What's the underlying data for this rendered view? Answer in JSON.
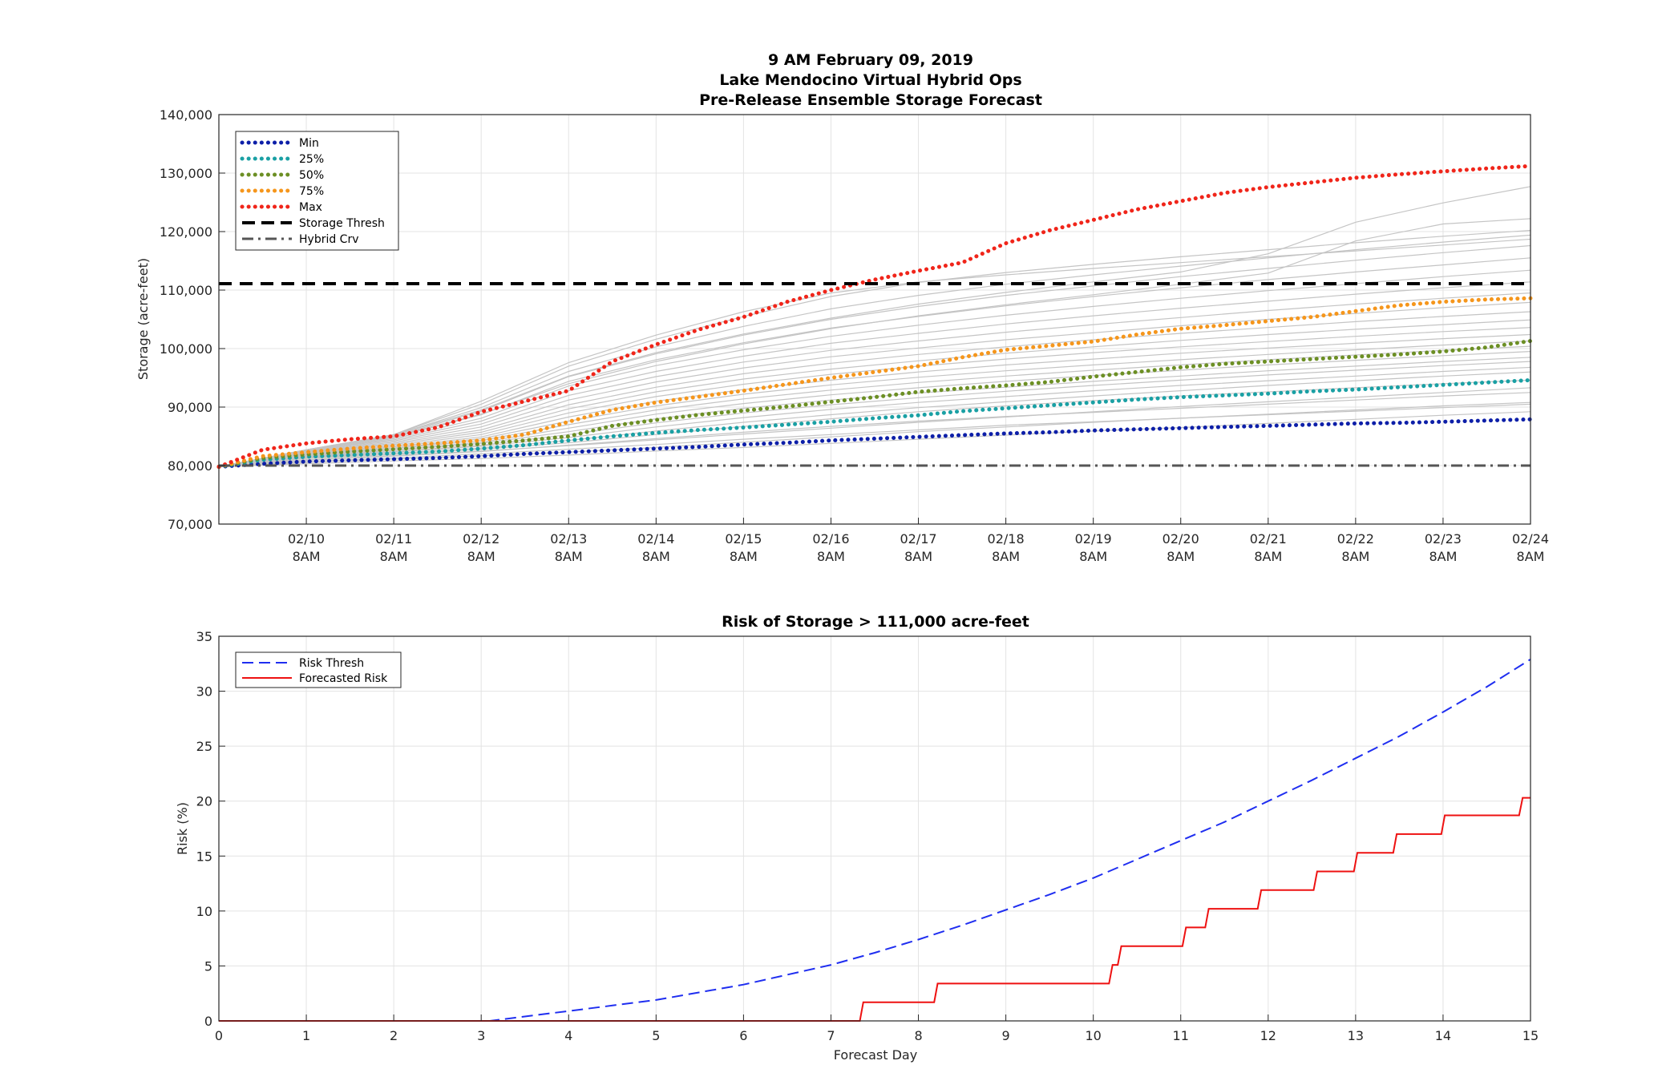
{
  "chart_data": [
    {
      "type": "line",
      "title": [
        "9 AM February 09, 2019",
        "Lake Mendocino Virtual Hybrid Ops",
        "Pre-Release Ensemble Storage Forecast"
      ],
      "ylabel": "Storage (acre-feet)",
      "xlabel": "",
      "xlim": [
        0,
        15
      ],
      "ylim": [
        70000,
        140000
      ],
      "grid": true,
      "legend_position": "top-left",
      "y_ticks": [
        "70,000",
        "80,000",
        "90,000",
        "100,000",
        "110,000",
        "120,000",
        "130,000",
        "140,000"
      ],
      "x_ticks": [
        {
          "x": 1,
          "date": "02/10",
          "time": "8AM"
        },
        {
          "x": 2,
          "date": "02/11",
          "time": "8AM"
        },
        {
          "x": 3,
          "date": "02/12",
          "time": "8AM"
        },
        {
          "x": 4,
          "date": "02/13",
          "time": "8AM"
        },
        {
          "x": 5,
          "date": "02/14",
          "time": "8AM"
        },
        {
          "x": 6,
          "date": "02/15",
          "time": "8AM"
        },
        {
          "x": 7,
          "date": "02/16",
          "time": "8AM"
        },
        {
          "x": 8,
          "date": "02/17",
          "time": "8AM"
        },
        {
          "x": 9,
          "date": "02/18",
          "time": "8AM"
        },
        {
          "x": 10,
          "date": "02/19",
          "time": "8AM"
        },
        {
          "x": 11,
          "date": "02/20",
          "time": "8AM"
        },
        {
          "x": 12,
          "date": "02/21",
          "time": "8AM"
        },
        {
          "x": 13,
          "date": "02/22",
          "time": "8AM"
        },
        {
          "x": 14,
          "date": "02/23",
          "time": "8AM"
        },
        {
          "x": 15,
          "date": "02/24",
          "time": "8AM"
        }
      ],
      "x_day": [
        0,
        0.5,
        1,
        1.5,
        2,
        2.5,
        3,
        3.5,
        4,
        4.5,
        5,
        5.5,
        6,
        6.5,
        7,
        7.5,
        8,
        8.5,
        9,
        9.5,
        10,
        10.5,
        11,
        11.5,
        12,
        12.5,
        13,
        13.5,
        14,
        14.5,
        15
      ],
      "series": [
        {
          "name": "Min",
          "color": "#0d1fa8",
          "style": "dotted",
          "values": [
            79800,
            80300,
            80700,
            80900,
            81100,
            81300,
            81600,
            82000,
            82300,
            82600,
            82900,
            83200,
            83600,
            83900,
            84300,
            84600,
            84900,
            85200,
            85500,
            85700,
            86000,
            86200,
            86400,
            86600,
            86800,
            87000,
            87200,
            87300,
            87500,
            87700,
            87900
          ]
        },
        {
          "name": "25%",
          "color": "#1aa0a4",
          "style": "dotted",
          "values": [
            79800,
            81000,
            81500,
            81800,
            82100,
            82400,
            82900,
            83500,
            84300,
            85000,
            85600,
            86100,
            86500,
            87000,
            87500,
            88100,
            88600,
            89300,
            89800,
            90300,
            90800,
            91300,
            91700,
            92000,
            92300,
            92700,
            93000,
            93400,
            93800,
            94200,
            94600
          ]
        },
        {
          "name": "50%",
          "color": "#6c8f24",
          "style": "dotted",
          "values": [
            79800,
            81300,
            81900,
            82400,
            82800,
            83200,
            83700,
            84300,
            85000,
            86800,
            87800,
            88700,
            89400,
            90100,
            90900,
            91700,
            92600,
            93200,
            93700,
            94300,
            95200,
            96000,
            96800,
            97400,
            97800,
            98200,
            98600,
            99000,
            99500,
            100200,
            101300
          ]
        },
        {
          "name": "75%",
          "color": "#f5961c",
          "style": "dotted",
          "values": [
            79800,
            81600,
            82300,
            82900,
            83400,
            83800,
            84300,
            85300,
            87500,
            89500,
            90800,
            91800,
            92800,
            93900,
            95000,
            96000,
            97000,
            98500,
            99800,
            100500,
            101200,
            102400,
            103400,
            104000,
            104700,
            105400,
            106400,
            107400,
            108000,
            108400,
            108600
          ]
        },
        {
          "name": "Max",
          "color": "#f0251a",
          "style": "dotted",
          "values": [
            79800,
            82700,
            83800,
            84500,
            85000,
            86500,
            89200,
            91000,
            92800,
            97800,
            100700,
            103300,
            105400,
            108000,
            110000,
            111800,
            113300,
            114700,
            118000,
            120200,
            122000,
            123800,
            125200,
            126600,
            127600,
            128400,
            129200,
            129800,
            130300,
            130800,
            131200
          ]
        },
        {
          "name": "Storage Thresh",
          "color": "#000000",
          "style": "dashed",
          "values": [
            111100,
            111100
          ]
        },
        {
          "name": "Hybrid Crv",
          "color": "#555555",
          "style": "dashdot",
          "values": [
            80000,
            80000
          ]
        }
      ],
      "ensemble_members": {
        "color": "#c4c4c4",
        "x": [
          0,
          1,
          2,
          3,
          4,
          5,
          6,
          7,
          8,
          9,
          10,
          11,
          12,
          13,
          14,
          15
        ],
        "members": [
          [
            79800,
            80300,
            80800,
            81200,
            81800,
            82500,
            83100,
            83800,
            84500,
            85200,
            85900,
            86500,
            87200,
            87900,
            88600,
            89200
          ],
          [
            79800,
            80500,
            81100,
            81700,
            82300,
            83100,
            84000,
            84900,
            85800,
            86600,
            87400,
            88100,
            88800,
            89500,
            90200,
            90800
          ],
          [
            79800,
            80700,
            81300,
            82000,
            82800,
            83600,
            84500,
            85300,
            86100,
            86900,
            87500,
            88100,
            88700,
            89300,
            89900,
            90500
          ],
          [
            79800,
            80900,
            81600,
            82400,
            83500,
            84600,
            85700,
            86700,
            87600,
            88400,
            89100,
            89800,
            90500,
            91200,
            91900,
            92500
          ],
          [
            79800,
            81000,
            81700,
            82500,
            83400,
            84400,
            85400,
            86400,
            87400,
            88300,
            89200,
            90100,
            90900,
            91700,
            92500,
            93300
          ],
          [
            79800,
            81200,
            81900,
            82800,
            83900,
            85300,
            86700,
            88000,
            89200,
            90200,
            91100,
            91900,
            92600,
            93300,
            94000,
            94600
          ],
          [
            79800,
            81300,
            82100,
            83000,
            84300,
            85900,
            87400,
            88700,
            89900,
            90900,
            91900,
            92800,
            93700,
            94500,
            95300,
            96000
          ],
          [
            79800,
            81400,
            82300,
            83300,
            84800,
            86600,
            88200,
            89600,
            90800,
            91800,
            92800,
            93700,
            94500,
            95300,
            96100,
            96800
          ],
          [
            79800,
            81500,
            82400,
            83500,
            85300,
            87300,
            89000,
            90400,
            91600,
            92700,
            93700,
            94600,
            95500,
            96300,
            97100,
            97800
          ],
          [
            79800,
            81600,
            82600,
            83800,
            85800,
            88000,
            89800,
            91200,
            92400,
            93400,
            94400,
            95300,
            96200,
            97000,
            97800,
            98500
          ],
          [
            79800,
            81700,
            82700,
            84000,
            86400,
            88800,
            90600,
            92100,
            93300,
            94400,
            95400,
            96300,
            97200,
            98000,
            98800,
            99500
          ],
          [
            79800,
            81800,
            82900,
            84300,
            87000,
            89500,
            91400,
            92900,
            94200,
            95300,
            96300,
            97200,
            98100,
            98900,
            99700,
            100400
          ],
          [
            79800,
            81900,
            83000,
            84600,
            87600,
            90200,
            92200,
            93800,
            95100,
            96200,
            97200,
            98100,
            99000,
            99800,
            100600,
            101300
          ],
          [
            79800,
            82000,
            83200,
            84900,
            88300,
            91000,
            93000,
            94600,
            96000,
            97200,
            98200,
            99200,
            100100,
            100900,
            101700,
            102400
          ],
          [
            79800,
            82100,
            83400,
            85300,
            89000,
            91800,
            93900,
            95600,
            97000,
            98200,
            99300,
            100300,
            101200,
            102100,
            102900,
            103600
          ],
          [
            79800,
            82200,
            83600,
            85700,
            89700,
            92600,
            94800,
            96500,
            97900,
            99200,
            100300,
            101400,
            102400,
            103300,
            104100,
            104900
          ],
          [
            79800,
            82300,
            83800,
            86100,
            90400,
            93400,
            95700,
            97500,
            99000,
            100300,
            101500,
            102600,
            103600,
            104600,
            105500,
            106300
          ],
          [
            79800,
            82400,
            84000,
            86600,
            91200,
            94300,
            96700,
            98600,
            100100,
            101500,
            102700,
            103900,
            105000,
            106000,
            107000,
            107900
          ],
          [
            79800,
            82500,
            84200,
            87100,
            92000,
            95200,
            97700,
            99700,
            101300,
            102800,
            104100,
            105300,
            106500,
            107600,
            108600,
            109500
          ],
          [
            79800,
            82600,
            84400,
            87600,
            92800,
            96100,
            98700,
            100900,
            102600,
            104200,
            105600,
            106900,
            108100,
            109300,
            110400,
            111400
          ],
          [
            79800,
            82600,
            84600,
            88100,
            93600,
            97100,
            99800,
            102100,
            104000,
            105700,
            107200,
            108600,
            109900,
            111100,
            112300,
            113400
          ],
          [
            79800,
            82700,
            84800,
            88700,
            94400,
            98100,
            101000,
            103500,
            105500,
            107300,
            108900,
            110400,
            111800,
            113100,
            114300,
            115500
          ],
          [
            79800,
            82700,
            85000,
            89300,
            95200,
            99100,
            102300,
            105000,
            107200,
            109100,
            110700,
            112300,
            113700,
            115100,
            116400,
            117600
          ],
          [
            79800,
            82700,
            85200,
            89900,
            96100,
            100300,
            103800,
            106800,
            109100,
            111000,
            112600,
            114100,
            115500,
            116900,
            118200,
            119400
          ],
          [
            79800,
            82700,
            85300,
            90500,
            97000,
            101600,
            105500,
            108900,
            111300,
            113000,
            114400,
            115700,
            116900,
            118100,
            119200,
            120200
          ],
          [
            79800,
            82700,
            85300,
            91000,
            97600,
            102300,
            106300,
            109500,
            111400,
            112600,
            113700,
            114700,
            115700,
            116700,
            117700,
            118700
          ],
          [
            79800,
            82700,
            85200,
            89500,
            95300,
            99300,
            102500,
            105200,
            107600,
            109600,
            111400,
            113100,
            116200,
            121600,
            124900,
            127700
          ],
          [
            79800,
            82600,
            85000,
            88800,
            94000,
            97800,
            100800,
            103400,
            105600,
            107500,
            109200,
            111000,
            112900,
            118400,
            121300,
            122200
          ]
        ]
      }
    },
    {
      "type": "line",
      "title": "Risk of Storage > 111,000 acre-feet",
      "xlabel": "Forecast Day",
      "ylabel": "Risk (%)",
      "xlim": [
        0,
        15
      ],
      "ylim": [
        0,
        35
      ],
      "grid": true,
      "legend_position": "top-left",
      "x_ticks": [
        "0",
        "1",
        "2",
        "3",
        "4",
        "5",
        "6",
        "7",
        "8",
        "9",
        "10",
        "11",
        "12",
        "13",
        "14",
        "15"
      ],
      "y_ticks": [
        "0",
        "5",
        "10",
        "15",
        "20",
        "25",
        "30",
        "35"
      ],
      "series": [
        {
          "name": "Risk Thresh",
          "color": "#1f2ef0",
          "style": "dashed",
          "x": [
            0,
            3.1,
            3.5,
            4,
            4.5,
            5,
            5.5,
            6,
            6.5,
            7,
            7.5,
            8,
            8.5,
            9,
            9.5,
            10,
            10.5,
            11,
            11.5,
            12,
            12.5,
            13,
            13.5,
            14,
            14.5,
            15
          ],
          "values": [
            0,
            0,
            0.4,
            0.9,
            1.4,
            1.9,
            2.6,
            3.3,
            4.2,
            5.1,
            6.2,
            7.4,
            8.7,
            10.1,
            11.5,
            13.0,
            14.7,
            16.4,
            18.1,
            20.0,
            21.9,
            23.9,
            25.9,
            28.1,
            30.4,
            32.9
          ]
        },
        {
          "name": "Forecasted Risk",
          "color": "#ee1111",
          "style": "solid",
          "x": [
            0,
            7.33,
            7.37,
            8.18,
            8.22,
            10.18,
            10.22,
            10.28,
            10.32,
            11.02,
            11.06,
            11.28,
            11.32,
            11.88,
            11.92,
            12.52,
            12.56,
            12.98,
            13.02,
            13.43,
            13.47,
            13.98,
            14.02,
            14.87,
            14.91,
            15
          ],
          "values": [
            0,
            0,
            1.7,
            1.7,
            3.4,
            3.4,
            5.1,
            5.1,
            6.8,
            6.8,
            8.5,
            8.5,
            10.2,
            10.2,
            11.9,
            11.9,
            13.6,
            13.6,
            15.3,
            15.3,
            17.0,
            17.0,
            18.7,
            18.7,
            20.3,
            20.3
          ]
        }
      ]
    }
  ]
}
